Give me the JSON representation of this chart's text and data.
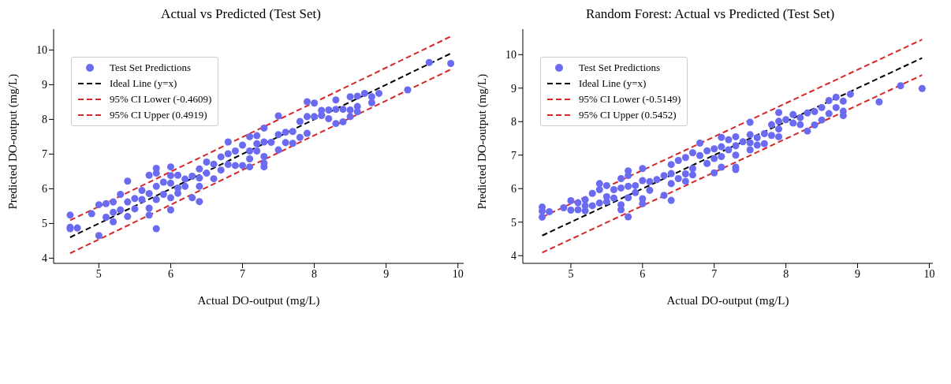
{
  "chart_data": [
    {
      "type": "scatter",
      "title": "Actual vs Predicted (Test Set)",
      "xlabel": "Actual DO-output (mg/L)",
      "ylabel": "Predicted DO-output (mg/L)",
      "xlim": [
        4.37,
        10.08
      ],
      "ylim": [
        3.85,
        10.6
      ],
      "xticks": [
        5,
        6,
        7,
        8,
        9,
        10
      ],
      "yticks": [
        4,
        5,
        6,
        7,
        8,
        9,
        10
      ],
      "legend": "top left",
      "series": [
        {
          "name": "Test Set Predictions",
          "marker": "circle",
          "color": "#6b6bf2",
          "x": [
            4.6,
            4.6,
            4.6,
            4.7,
            4.9,
            5.0,
            5.0,
            5.1,
            5.1,
            5.2,
            5.2,
            5.2,
            5.3,
            5.3,
            5.4,
            5.4,
            5.4,
            5.5,
            5.5,
            5.6,
            5.6,
            5.7,
            5.7,
            5.7,
            5.7,
            5.8,
            5.8,
            5.8,
            5.8,
            5.8,
            5.9,
            5.9,
            6.0,
            6.0,
            6.0,
            6.0,
            6.0,
            6.1,
            6.1,
            6.1,
            6.2,
            6.2,
            6.3,
            6.3,
            6.4,
            6.4,
            6.4,
            6.4,
            6.5,
            6.5,
            6.6,
            6.6,
            6.7,
            6.7,
            6.8,
            6.8,
            6.8,
            6.9,
            6.9,
            7.0,
            7.0,
            7.1,
            7.1,
            7.1,
            7.1,
            7.2,
            7.2,
            7.2,
            7.3,
            7.3,
            7.3,
            7.3,
            7.3,
            7.4,
            7.5,
            7.5,
            7.5,
            7.6,
            7.6,
            7.7,
            7.7,
            7.8,
            7.8,
            7.9,
            7.9,
            7.9,
            8.0,
            8.0,
            8.1,
            8.1,
            8.2,
            8.2,
            8.3,
            8.3,
            8.3,
            8.4,
            8.4,
            8.5,
            8.5,
            8.5,
            8.6,
            8.6,
            8.6,
            8.7,
            8.8,
            8.8,
            8.9,
            9.3,
            9.6,
            9.9
          ],
          "values": [
            5.24,
            4.89,
            4.85,
            4.87,
            5.28,
            5.54,
            4.65,
            5.57,
            5.18,
            5.62,
            5.32,
            5.05,
            5.84,
            5.39,
            6.22,
            5.62,
            5.2,
            5.72,
            5.42,
            5.95,
            5.69,
            6.39,
            5.86,
            5.44,
            5.24,
            6.59,
            6.45,
            6.07,
            5.69,
            4.85,
            6.19,
            5.84,
            6.63,
            6.38,
            6.16,
            5.74,
            5.39,
            6.39,
            6.02,
            5.87,
            6.28,
            6.07,
            6.36,
            5.74,
            6.57,
            6.31,
            6.07,
            5.63,
            6.77,
            6.45,
            6.71,
            6.29,
            6.92,
            6.54,
            7.35,
            7.01,
            6.7,
            7.09,
            6.67,
            7.26,
            6.67,
            7.5,
            7.09,
            6.86,
            6.63,
            7.53,
            7.3,
            7.09,
            7.75,
            7.35,
            6.93,
            6.74,
            6.63,
            7.34,
            8.1,
            7.56,
            7.12,
            7.63,
            7.33,
            7.65,
            7.31,
            7.94,
            7.48,
            8.51,
            8.08,
            7.6,
            8.47,
            8.08,
            8.26,
            8.11,
            8.27,
            8.02,
            8.56,
            8.29,
            7.88,
            8.29,
            7.93,
            8.65,
            8.27,
            8.08,
            8.67,
            8.37,
            8.22,
            8.75,
            8.65,
            8.48,
            8.75,
            8.85,
            9.64,
            9.61
          ]
        },
        {
          "name": "Ideal Line (y=x)",
          "type": "line",
          "color": "#000000",
          "line_style": "dashed",
          "x": [
            4.6,
            9.9
          ],
          "values": [
            4.6,
            9.9
          ]
        },
        {
          "name": "95% CI Lower (-0.4609)",
          "type": "line",
          "color": "#d62728",
          "line_style": "dashed",
          "x": [
            4.6,
            9.9
          ],
          "values": [
            4.14,
            9.44
          ]
        },
        {
          "name": "95% CI Upper (0.4919)",
          "type": "line",
          "color": "#d62728",
          "line_style": "dashed",
          "x": [
            4.6,
            9.9
          ],
          "values": [
            5.09,
            10.39
          ]
        }
      ]
    },
    {
      "type": "scatter",
      "title": "Random Forest: Actual vs Predicted (Test Set)",
      "xlabel": "Actual DO-output (mg/L)",
      "ylabel": "Predicted DO-output (mg/L)",
      "xlim": [
        4.33,
        10.05
      ],
      "ylim": [
        3.77,
        10.76
      ],
      "xticks": [
        5,
        6,
        7,
        8,
        9,
        10
      ],
      "yticks": [
        4,
        5,
        6,
        7,
        8,
        9,
        10
      ],
      "legend": "top left",
      "series": [
        {
          "name": "Test Set Predictions",
          "marker": "circle",
          "color": "#6b6bf2",
          "x": [
            4.6,
            4.6,
            4.6,
            4.7,
            4.9,
            5.0,
            5.0,
            5.1,
            5.1,
            5.2,
            5.2,
            5.2,
            5.3,
            5.3,
            5.4,
            5.4,
            5.4,
            5.5,
            5.5,
            5.5,
            5.6,
            5.6,
            5.7,
            5.7,
            5.7,
            5.7,
            5.8,
            5.8,
            5.8,
            5.8,
            5.8,
            5.9,
            5.9,
            6.0,
            6.0,
            6.0,
            6.0,
            6.1,
            6.1,
            6.2,
            6.3,
            6.3,
            6.4,
            6.4,
            6.4,
            6.4,
            6.5,
            6.5,
            6.6,
            6.6,
            6.6,
            6.7,
            6.7,
            6.7,
            6.8,
            6.8,
            6.9,
            6.9,
            7.0,
            7.0,
            7.0,
            7.1,
            7.1,
            7.1,
            7.1,
            7.2,
            7.2,
            7.3,
            7.3,
            7.3,
            7.3,
            7.3,
            7.4,
            7.5,
            7.5,
            7.5,
            7.5,
            7.6,
            7.6,
            7.7,
            7.7,
            7.8,
            7.8,
            7.9,
            7.9,
            7.9,
            7.9,
            8.0,
            8.1,
            8.1,
            8.2,
            8.2,
            8.3,
            8.3,
            8.4,
            8.4,
            8.5,
            8.5,
            8.6,
            8.6,
            8.7,
            8.7,
            8.8,
            8.8,
            8.8,
            8.9,
            9.3,
            9.6,
            9.9
          ],
          "values": [
            5.45,
            5.33,
            5.15,
            5.31,
            5.43,
            5.64,
            5.36,
            5.58,
            5.37,
            5.67,
            5.49,
            5.34,
            5.86,
            5.49,
            6.15,
            5.97,
            5.57,
            6.09,
            5.76,
            5.61,
            5.97,
            5.72,
            6.3,
            6.02,
            5.52,
            5.37,
            6.53,
            6.39,
            6.07,
            5.73,
            5.16,
            6.09,
            5.88,
            6.6,
            6.24,
            5.7,
            5.55,
            6.21,
            5.95,
            6.27,
            6.39,
            5.8,
            6.72,
            6.45,
            6.15,
            5.65,
            6.84,
            6.3,
            6.93,
            6.44,
            6.22,
            7.07,
            6.6,
            6.41,
            7.36,
            6.99,
            7.13,
            6.75,
            7.19,
            6.9,
            6.47,
            7.53,
            7.25,
            6.96,
            6.64,
            7.46,
            7.16,
            7.55,
            7.28,
            7.0,
            6.64,
            6.57,
            7.4,
            7.98,
            7.61,
            7.37,
            7.16,
            7.52,
            7.3,
            7.64,
            7.34,
            7.91,
            7.59,
            8.27,
            8.01,
            7.78,
            7.55,
            8.06,
            8.21,
            7.96,
            8.12,
            7.91,
            8.26,
            7.72,
            8.3,
            7.9,
            8.42,
            8.05,
            8.63,
            8.24,
            8.73,
            8.42,
            8.61,
            8.31,
            8.18,
            8.82,
            8.59,
            9.07,
            8.99
          ]
        },
        {
          "name": "Ideal Line (y=x)",
          "type": "line",
          "color": "#000000",
          "line_style": "dashed",
          "x": [
            4.6,
            9.9
          ],
          "values": [
            4.6,
            9.9
          ]
        },
        {
          "name": "95% CI Lower (-0.5149)",
          "type": "line",
          "color": "#d62728",
          "line_style": "dashed",
          "x": [
            4.6,
            9.9
          ],
          "values": [
            4.09,
            9.39
          ]
        },
        {
          "name": "95% CI Upper (0.5452)",
          "type": "line",
          "color": "#d62728",
          "line_style": "dashed",
          "x": [
            4.6,
            9.9
          ],
          "values": [
            5.15,
            10.45
          ]
        }
      ]
    }
  ]
}
